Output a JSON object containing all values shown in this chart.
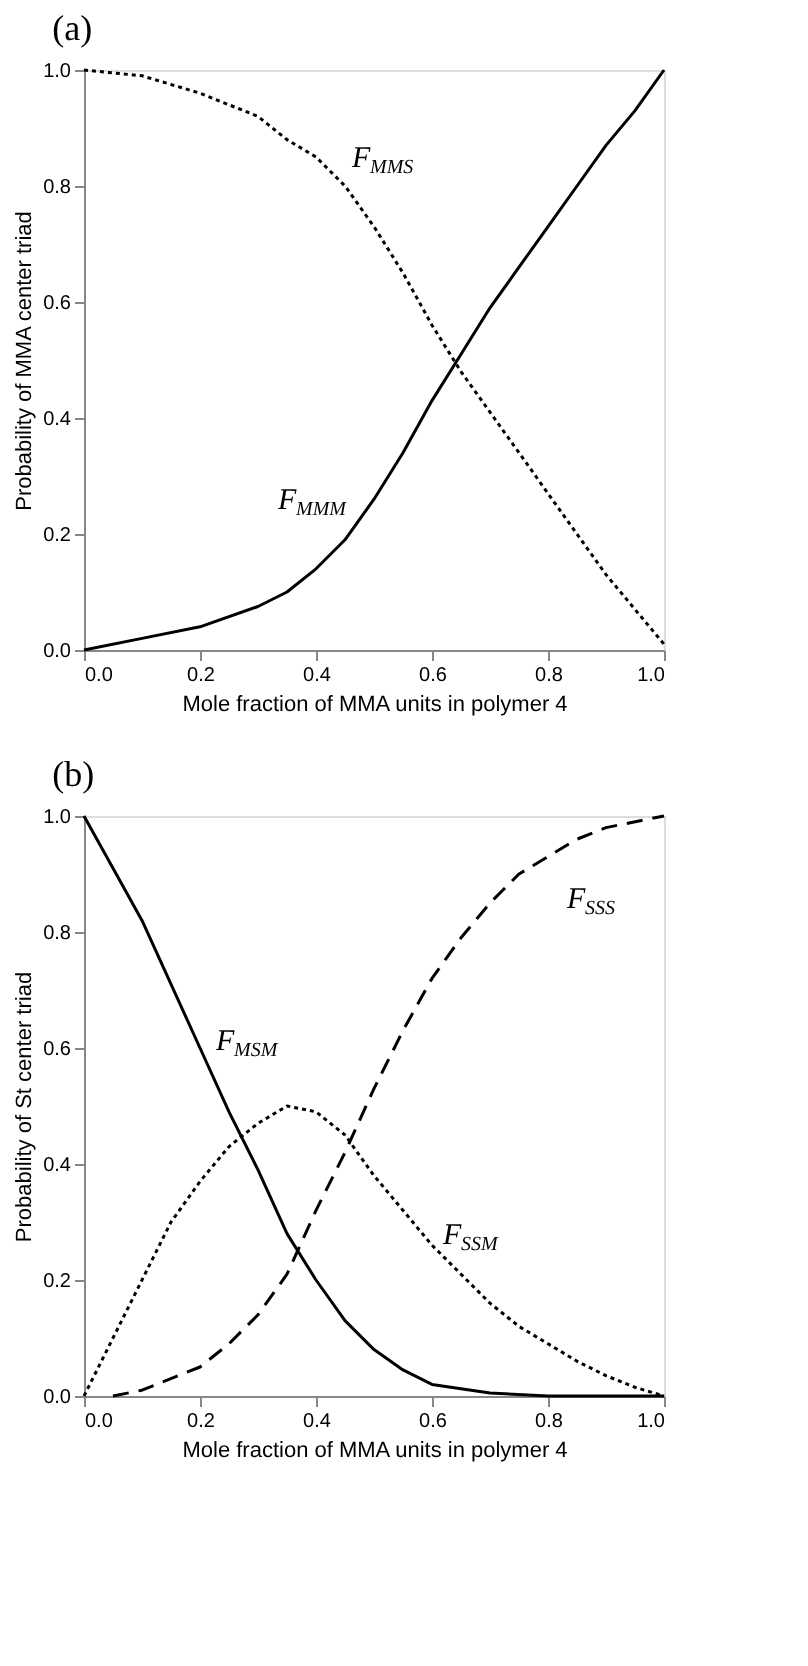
{
  "chart_data": [
    {
      "type": "line",
      "title": "(a)",
      "xlabel": "Mole fraction of MMA units in polymer 4",
      "ylabel": "Probability of MMA center triad",
      "xlim": [
        0,
        1
      ],
      "ylim": [
        0,
        1
      ],
      "xticks": [
        {
          "value": 0,
          "label": "0.0"
        },
        0.2,
        0.4,
        0.6,
        0.8,
        {
          "value": 1,
          "label": "1.0"
        }
      ],
      "yticks": [
        {
          "value": 0,
          "label": "0.0"
        },
        0.2,
        0.4,
        0.6,
        0.8,
        {
          "value": 1,
          "label": "1.0"
        }
      ],
      "grid": false,
      "series": [
        {
          "name": "F$_{MMS}$",
          "color": "#000000",
          "line_style": "dotted",
          "x": [
            0,
            0.1,
            0.2,
            0.3,
            0.35,
            0.4,
            0.45,
            0.5,
            0.55,
            0.6,
            0.65,
            0.7,
            0.75,
            0.8,
            0.85,
            0.9,
            0.95,
            1.0
          ],
          "values": [
            1.0,
            0.99,
            0.96,
            0.92,
            0.88,
            0.85,
            0.8,
            0.73,
            0.65,
            0.56,
            0.48,
            0.41,
            0.34,
            0.27,
            0.2,
            0.13,
            0.07,
            0.01
          ]
        },
        {
          "name": "F$_{MMM}$",
          "color": "#000000",
          "line_style": "solid",
          "x": [
            0,
            0.1,
            0.2,
            0.3,
            0.35,
            0.4,
            0.45,
            0.5,
            0.55,
            0.6,
            0.65,
            0.7,
            0.75,
            0.8,
            0.85,
            0.9,
            0.95,
            1.0
          ],
          "values": [
            0.0,
            0.02,
            0.04,
            0.075,
            0.1,
            0.14,
            0.19,
            0.26,
            0.34,
            0.43,
            0.51,
            0.59,
            0.66,
            0.73,
            0.8,
            0.87,
            0.93,
            1.0
          ]
        }
      ]
    },
    {
      "type": "line",
      "title": "(b)",
      "xlabel": "Mole fraction of MMA units in polymer 4",
      "ylabel": "Probability of St center triad",
      "xlim": [
        0,
        1
      ],
      "ylim": [
        0,
        1
      ],
      "xticks": [
        {
          "value": 0,
          "label": "0.0"
        },
        0.2,
        0.4,
        0.6,
        0.8,
        {
          "value": 1,
          "label": "1.0"
        }
      ],
      "yticks": [
        {
          "value": 0,
          "label": "0.0"
        },
        0.2,
        0.4,
        0.6,
        0.8,
        {
          "value": 1,
          "label": "1.0"
        }
      ],
      "grid": false,
      "series": [
        {
          "name": "F$_{MSM}$",
          "color": "#000000",
          "line_style": "solid",
          "x": [
            0,
            0.1,
            0.2,
            0.25,
            0.3,
            0.35,
            0.4,
            0.45,
            0.5,
            0.55,
            0.6,
            0.7,
            0.8,
            1.0
          ],
          "values": [
            1.0,
            0.82,
            0.6,
            0.49,
            0.39,
            0.28,
            0.2,
            0.13,
            0.08,
            0.045,
            0.02,
            0.005,
            0.0,
            0.0
          ]
        },
        {
          "name": "F$_{SSM}$",
          "color": "#000000",
          "line_style": "dotted",
          "x": [
            0,
            0.05,
            0.1,
            0.15,
            0.2,
            0.25,
            0.3,
            0.35,
            0.4,
            0.45,
            0.5,
            0.55,
            0.6,
            0.65,
            0.7,
            0.75,
            0.8,
            0.85,
            0.9,
            0.95,
            1.0
          ],
          "values": [
            0.0,
            0.1,
            0.2,
            0.3,
            0.37,
            0.43,
            0.47,
            0.5,
            0.49,
            0.45,
            0.38,
            0.32,
            0.26,
            0.21,
            0.16,
            0.12,
            0.09,
            0.06,
            0.035,
            0.015,
            0.0
          ]
        },
        {
          "name": "F$_{SSS}$",
          "color": "#000000",
          "line_style": "dashed",
          "x": [
            0.05,
            0.1,
            0.2,
            0.25,
            0.3,
            0.35,
            0.4,
            0.45,
            0.5,
            0.55,
            0.6,
            0.65,
            0.7,
            0.75,
            0.8,
            0.85,
            0.9,
            1.0
          ],
          "values": [
            0.0,
            0.01,
            0.05,
            0.09,
            0.14,
            0.21,
            0.32,
            0.42,
            0.53,
            0.63,
            0.72,
            0.79,
            0.85,
            0.9,
            0.93,
            0.96,
            0.98,
            1.0
          ]
        }
      ]
    }
  ]
}
